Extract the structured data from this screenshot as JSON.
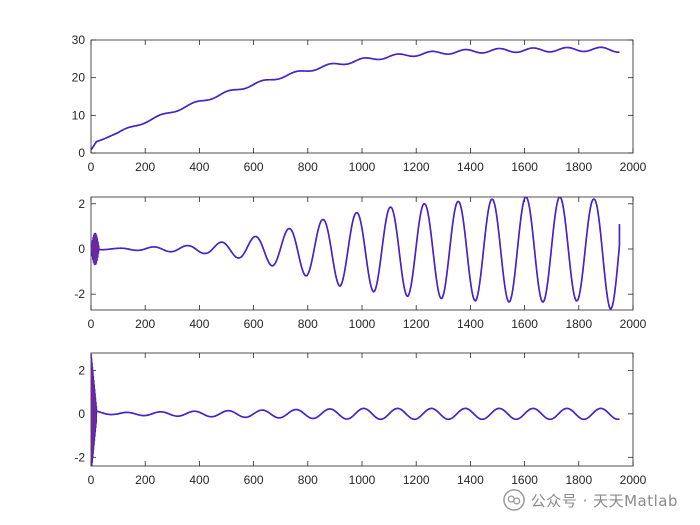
{
  "chart_data": [
    {
      "type": "line",
      "xlim": [
        0,
        2000
      ],
      "ylim": [
        0,
        30
      ],
      "xticks": [
        0,
        200,
        400,
        600,
        800,
        1000,
        1200,
        1400,
        1600,
        1800,
        2000
      ],
      "yticks": [
        0,
        10,
        20,
        30
      ],
      "xtick_labels": [
        "0",
        "200",
        "400",
        "600",
        "800",
        "1000",
        "1200",
        "1400",
        "1600",
        "1800",
        "2000"
      ],
      "ytick_labels": [
        "0",
        "10",
        "20",
        "30"
      ],
      "grid": false,
      "series": [
        {
          "color": "#0000ff",
          "overlay_color": "#7e2f8e",
          "x": [
            0,
            20,
            50,
            100,
            150,
            200,
            300,
            400,
            500,
            600,
            700,
            800,
            900,
            1000,
            1100,
            1200,
            1300,
            1400,
            1500,
            1600,
            1700,
            1800,
            1900,
            1950
          ],
          "y": [
            0.8,
            3.0,
            3.8,
            5.4,
            6.8,
            8.3,
            11.0,
            13.6,
            16.0,
            18.2,
            20.2,
            22.0,
            23.5,
            24.7,
            25.6,
            26.2,
            26.7,
            27.0,
            27.2,
            27.3,
            27.4,
            27.5,
            27.5,
            27.3
          ],
          "ripple": {
            "start_x": 100,
            "amplitude": [
              0.3,
              0.55
            ],
            "period": 125
          }
        }
      ]
    },
    {
      "type": "line",
      "xlim": [
        0,
        2000
      ],
      "ylim": [
        -2.7,
        2.3
      ],
      "xticks": [
        0,
        200,
        400,
        600,
        800,
        1000,
        1200,
        1400,
        1600,
        1800,
        2000
      ],
      "yticks": [
        -2,
        0,
        2
      ],
      "xtick_labels": [
        "0",
        "200",
        "400",
        "600",
        "800",
        "1000",
        "1200",
        "1400",
        "1600",
        "1800",
        "2000"
      ],
      "ytick_labels": [
        "-2",
        "0",
        "2"
      ],
      "grid": false,
      "series": [
        {
          "color": "#0000ff",
          "overlay_color": "#7e2f8e",
          "period": 125,
          "phase_zero_x": 100,
          "peaks": [
            {
              "x": 355,
              "y": 0.15
            },
            {
              "x": 480,
              "y": 0.3
            },
            {
              "x": 605,
              "y": 0.55
            },
            {
              "x": 730,
              "y": 0.9
            },
            {
              "x": 855,
              "y": 1.3
            },
            {
              "x": 980,
              "y": 1.6
            },
            {
              "x": 1105,
              "y": 1.85
            },
            {
              "x": 1230,
              "y": 2.0
            },
            {
              "x": 1355,
              "y": 2.1
            },
            {
              "x": 1480,
              "y": 2.2
            },
            {
              "x": 1605,
              "y": 2.3
            },
            {
              "x": 1730,
              "y": 2.3
            },
            {
              "x": 1855,
              "y": 2.2
            }
          ],
          "troughs": [
            {
              "x": 420,
              "y": -0.2
            },
            {
              "x": 545,
              "y": -0.4
            },
            {
              "x": 670,
              "y": -0.75
            },
            {
              "x": 795,
              "y": -1.2
            },
            {
              "x": 920,
              "y": -1.65
            },
            {
              "x": 1045,
              "y": -1.9
            },
            {
              "x": 1170,
              "y": -2.1
            },
            {
              "x": 1295,
              "y": -2.2
            },
            {
              "x": 1420,
              "y": -2.3
            },
            {
              "x": 1545,
              "y": -2.35
            },
            {
              "x": 1670,
              "y": -2.35
            },
            {
              "x": 1795,
              "y": -2.3
            },
            {
              "x": 1915,
              "y": -2.65
            }
          ],
          "end": {
            "x": 1950,
            "y": 1.1
          },
          "burst": {
            "x_range": [
              0,
              30
            ],
            "amplitude": 0.75,
            "period": 2.5
          }
        }
      ]
    },
    {
      "type": "line",
      "xlim": [
        0,
        2000
      ],
      "ylim": [
        -2.4,
        2.8
      ],
      "xticks": [
        0,
        200,
        400,
        600,
        800,
        1000,
        1200,
        1400,
        1600,
        1800,
        2000
      ],
      "yticks": [
        -2,
        0,
        2
      ],
      "xtick_labels": [
        "0",
        "200",
        "400",
        "600",
        "800",
        "1000",
        "1200",
        "1400",
        "1600",
        "1800",
        "2000"
      ],
      "ytick_labels": [
        "-2",
        "0",
        "2"
      ],
      "grid": false,
      "series": [
        {
          "color": "#0000ff",
          "overlay_color": "#7e2f8e",
          "period": 125,
          "phase_zero_x": 100,
          "amplitude": [
            0.06,
            0.25
          ],
          "amplitude_growth_range": [
            100,
            1000
          ],
          "baseline": 0.08,
          "end": {
            "x": 1950,
            "y": -0.1
          },
          "burst": {
            "x_range": [
              0,
              20
            ],
            "amplitude_start": 2.8,
            "amplitude_end": 0.3,
            "period": 1.6
          }
        }
      ]
    }
  ],
  "watermark": {
    "text": "公众号 · 天天Matlab",
    "icon": "wechat-icon",
    "color": "#8a8a8a"
  }
}
